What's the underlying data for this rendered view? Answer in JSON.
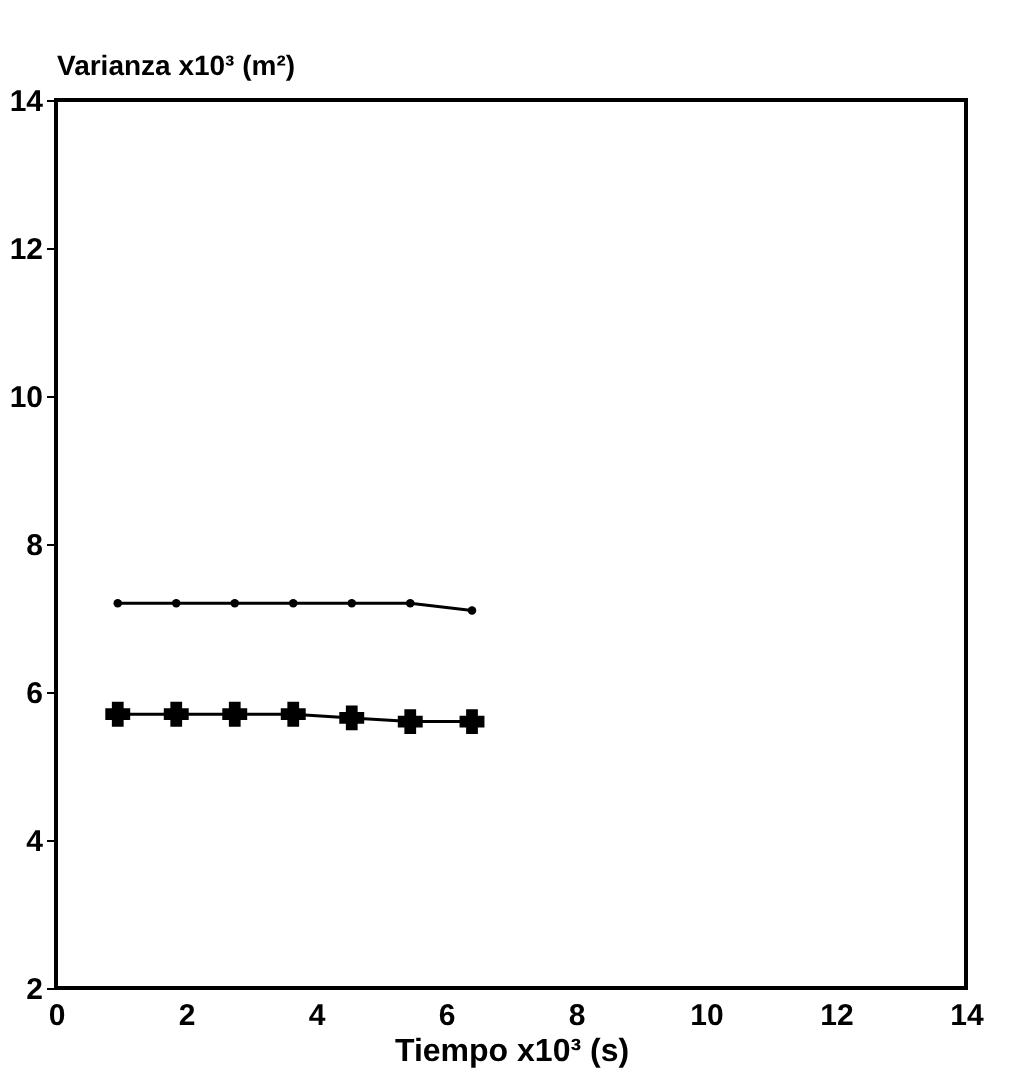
{
  "chart_data": {
    "type": "line",
    "xlabel": "Tiempo x10³ (s)",
    "ylabel": "Varianza x10³ (m²)",
    "xlim": [
      0,
      14
    ],
    "xticks": [
      0,
      2,
      4,
      6,
      8,
      10,
      12,
      14
    ],
    "ylim": [
      2,
      14
    ],
    "yticks": [
      2,
      4,
      6,
      8,
      10,
      12,
      14
    ],
    "grid": false,
    "line_style": "solid",
    "x": [
      0.95,
      1.85,
      2.75,
      3.65,
      4.55,
      5.45,
      6.4
    ],
    "series": [
      {
        "color": "#000000",
        "marker": "circle",
        "values": [
          7.2,
          7.2,
          7.2,
          7.2,
          7.2,
          7.2,
          7.1
        ]
      },
      {
        "color": "#000000",
        "marker": "cross",
        "values": [
          5.7,
          5.7,
          5.7,
          5.7,
          5.65,
          5.6,
          5.6
        ]
      }
    ]
  }
}
